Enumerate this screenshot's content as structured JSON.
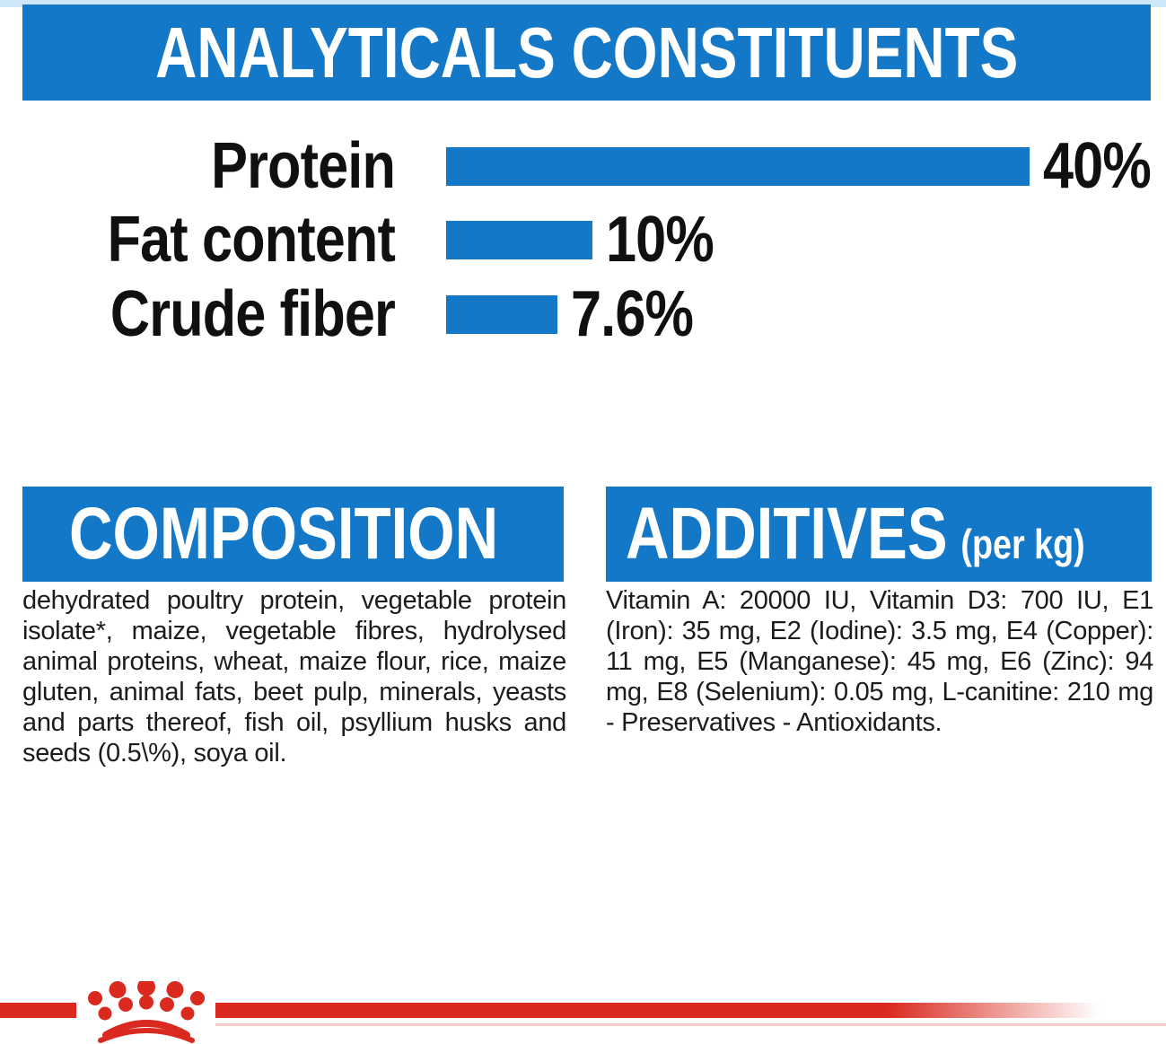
{
  "banner": {
    "title": "ANALYTICALS CONSTITUENTS"
  },
  "chart_data": {
    "type": "bar",
    "orientation": "horizontal",
    "title": "ANALYTICALS CONSTITUENTS",
    "categories": [
      "Protein",
      "Fat content",
      "Crude fiber"
    ],
    "values": [
      40,
      10,
      7.6
    ],
    "value_labels": [
      "40%",
      "10%",
      "7.6%"
    ],
    "unit": "%",
    "xlim": [
      0,
      40
    ],
    "bar_color": "#1478c9",
    "grid": false,
    "legend": false
  },
  "sections": {
    "composition": {
      "title": "COMPOSITION",
      "body": "dehydrated poultry protein, vegetable protein isolate*, maize, vegetable fibres, hydrolysed animal proteins, wheat, maize flour, rice, maize gluten, animal fats, beet pulp, minerals, yeasts and parts thereof, fish oil, psyllium husks and seeds (0.5\\%), soya oil."
    },
    "additives": {
      "title": "ADDITIVES",
      "title_suffix": "(per kg)",
      "body": "Vitamin A: 20000 IU, Vitamin D3: 700 IU, E1 (Iron): 35 mg, E2 (Iodine): 3.5 mg, E4 (Copper): 11 mg, E5 (Manganese): 45 mg, E6 (Zinc): 94 mg, E8 (Selenium): 0.05 mg, L-canitine: 210 mg - Preservatives - Antioxidants."
    }
  },
  "footer": {
    "logo_icon": "royal-canin-crown-icon"
  },
  "colors": {
    "accent-blue": "#1478c9",
    "brand-red": "#da2a20",
    "text-black": "#141414",
    "top-strip-blue": "#cde7f7"
  }
}
